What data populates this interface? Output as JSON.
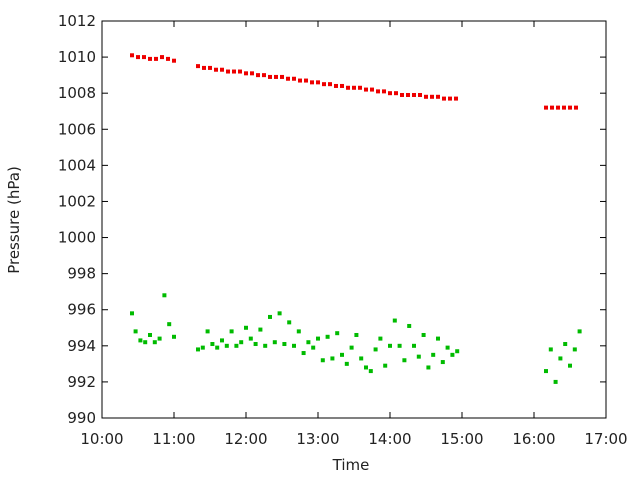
{
  "chart_data": {
    "type": "scatter",
    "xlabel": "Time",
    "ylabel": "Pressure (hPa)",
    "xlim": [
      "10:00",
      "17:00"
    ],
    "ylim": [
      990,
      1012
    ],
    "x_ticks": [
      "10:00",
      "11:00",
      "12:00",
      "13:00",
      "14:00",
      "15:00",
      "16:00",
      "17:00"
    ],
    "y_ticks": [
      990,
      992,
      994,
      996,
      998,
      1000,
      1002,
      1004,
      1006,
      1008,
      1010,
      1012
    ],
    "grid": false,
    "legend": "none",
    "series": [
      {
        "color": "#ee0000",
        "x": [
          "10:25",
          "10:30",
          "10:35",
          "10:40",
          "10:45",
          "10:50",
          "10:55",
          "11:00",
          "11:20",
          "11:25",
          "11:30",
          "11:35",
          "11:40",
          "11:45",
          "11:50",
          "11:55",
          "12:00",
          "12:05",
          "12:10",
          "12:15",
          "12:20",
          "12:25",
          "12:30",
          "12:35",
          "12:40",
          "12:45",
          "12:50",
          "12:55",
          "13:00",
          "13:05",
          "13:10",
          "13:15",
          "13:20",
          "13:25",
          "13:30",
          "13:35",
          "13:40",
          "13:45",
          "13:50",
          "13:55",
          "14:00",
          "14:05",
          "14:10",
          "14:15",
          "14:20",
          "14:25",
          "14:30",
          "14:35",
          "14:40",
          "14:45",
          "14:50",
          "14:55",
          "16:10",
          "16:15",
          "16:20",
          "16:25",
          "16:30",
          "16:35"
        ],
        "y": [
          1010.1,
          1010.0,
          1010.0,
          1009.9,
          1009.9,
          1010.0,
          1009.9,
          1009.8,
          1009.5,
          1009.4,
          1009.4,
          1009.3,
          1009.3,
          1009.2,
          1009.2,
          1009.2,
          1009.1,
          1009.1,
          1009.0,
          1009.0,
          1008.9,
          1008.9,
          1008.9,
          1008.8,
          1008.8,
          1008.7,
          1008.7,
          1008.6,
          1008.6,
          1008.5,
          1008.5,
          1008.4,
          1008.4,
          1008.3,
          1008.3,
          1008.3,
          1008.2,
          1008.2,
          1008.1,
          1008.1,
          1008.0,
          1008.0,
          1007.9,
          1007.9,
          1007.9,
          1007.9,
          1007.8,
          1007.8,
          1007.8,
          1007.7,
          1007.7,
          1007.7,
          1007.2,
          1007.2,
          1007.2,
          1007.2,
          1007.2,
          1007.2
        ]
      },
      {
        "color": "#00bb00",
        "x": [
          "10:25",
          "10:28",
          "10:32",
          "10:36",
          "10:40",
          "10:44",
          "10:48",
          "10:52",
          "10:56",
          "11:00",
          "11:20",
          "11:24",
          "11:28",
          "11:32",
          "11:36",
          "11:40",
          "11:44",
          "11:48",
          "11:52",
          "11:56",
          "12:00",
          "12:04",
          "12:08",
          "12:12",
          "12:16",
          "12:20",
          "12:24",
          "12:28",
          "12:32",
          "12:36",
          "12:40",
          "12:44",
          "12:48",
          "12:52",
          "12:56",
          "13:00",
          "13:04",
          "13:08",
          "13:12",
          "13:16",
          "13:20",
          "13:24",
          "13:28",
          "13:32",
          "13:36",
          "13:40",
          "13:44",
          "13:48",
          "13:52",
          "13:56",
          "14:00",
          "14:04",
          "14:08",
          "14:12",
          "14:16",
          "14:20",
          "14:24",
          "14:28",
          "14:32",
          "14:36",
          "14:40",
          "14:44",
          "14:48",
          "14:52",
          "14:56",
          "16:10",
          "16:14",
          "16:18",
          "16:22",
          "16:26",
          "16:30",
          "16:34",
          "16:38"
        ],
        "y": [
          995.8,
          994.8,
          994.3,
          994.2,
          994.6,
          994.2,
          994.4,
          996.8,
          995.2,
          994.5,
          993.8,
          993.9,
          994.8,
          994.1,
          993.9,
          994.3,
          994.0,
          994.8,
          994.0,
          994.2,
          995.0,
          994.4,
          994.1,
          994.9,
          994.0,
          995.6,
          994.2,
          995.8,
          994.1,
          995.3,
          994.0,
          994.8,
          993.6,
          994.2,
          993.9,
          994.4,
          993.2,
          994.5,
          993.3,
          994.7,
          993.5,
          993.0,
          993.9,
          994.6,
          993.3,
          992.8,
          992.6,
          993.8,
          994.4,
          992.9,
          994.0,
          995.4,
          994.0,
          993.2,
          995.1,
          994.0,
          993.4,
          994.6,
          992.8,
          993.5,
          994.4,
          993.1,
          993.9,
          993.5,
          993.7,
          992.6,
          993.8,
          992.0,
          993.3,
          994.1,
          992.9,
          993.8,
          994.8
        ]
      }
    ]
  }
}
